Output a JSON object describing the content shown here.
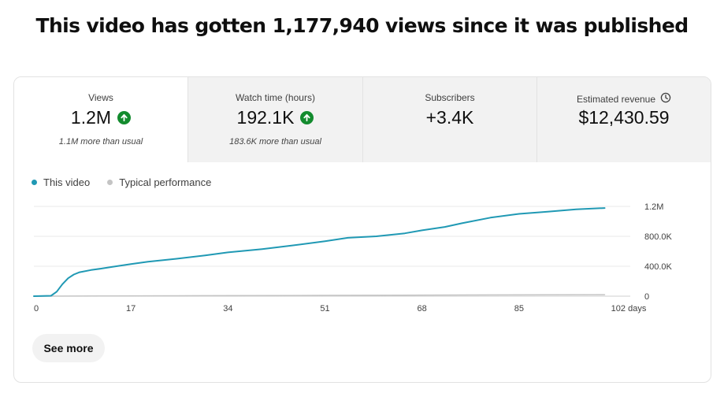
{
  "headline": "This video has gotten 1,177,940 views since it was published",
  "metrics": [
    {
      "title": "Views",
      "value": "1.2M",
      "note": "1.1M more than usual",
      "trend": "up"
    },
    {
      "title": "Watch time (hours)",
      "value": "192.1K",
      "note": "183.6K more than usual",
      "trend": "up"
    },
    {
      "title": "Subscribers",
      "value": "+3.4K",
      "note": "",
      "trend": ""
    },
    {
      "title": "Estimated revenue",
      "value": "$12,430.59",
      "note": "",
      "trend": "",
      "icon": "clock-icon"
    }
  ],
  "colors": {
    "accent": "#2099b4",
    "typical": "#c4c4c4",
    "up": "#138b2e"
  },
  "see_more_label": "See more",
  "chart_data": {
    "type": "line",
    "legend": [
      "This video",
      "Typical performance"
    ],
    "x_unit_label": "days",
    "x_ticks": [
      0,
      17,
      34,
      51,
      68,
      85,
      102
    ],
    "x_tick_labels": [
      "0",
      "17",
      "34",
      "51",
      "68",
      "85",
      "102 days"
    ],
    "y_ticks": [
      0,
      400000,
      800000,
      1200000
    ],
    "y_tick_labels": [
      "0",
      "400.0K",
      "800.0K",
      "1.2M"
    ],
    "xlim": [
      0,
      102
    ],
    "ylim": [
      0,
      1200000
    ],
    "series": [
      {
        "name": "This video",
        "x": [
          0,
          3,
          4,
          5,
          6,
          7,
          8,
          10,
          12,
          14,
          17,
          20,
          25,
          30,
          34,
          40,
          45,
          51,
          55,
          60,
          65,
          68,
          72,
          75,
          80,
          85,
          90,
          95,
          100
        ],
        "values": [
          0,
          5000,
          60000,
          160000,
          240000,
          290000,
          320000,
          350000,
          370000,
          395000,
          430000,
          460000,
          500000,
          545000,
          585000,
          630000,
          675000,
          735000,
          780000,
          800000,
          840000,
          880000,
          925000,
          975000,
          1050000,
          1100000,
          1130000,
          1160000,
          1178000
        ]
      },
      {
        "name": "Typical performance",
        "x": [
          0,
          25,
          50,
          75,
          100
        ],
        "values": [
          0,
          5000,
          11000,
          16000,
          20000
        ]
      }
    ]
  }
}
